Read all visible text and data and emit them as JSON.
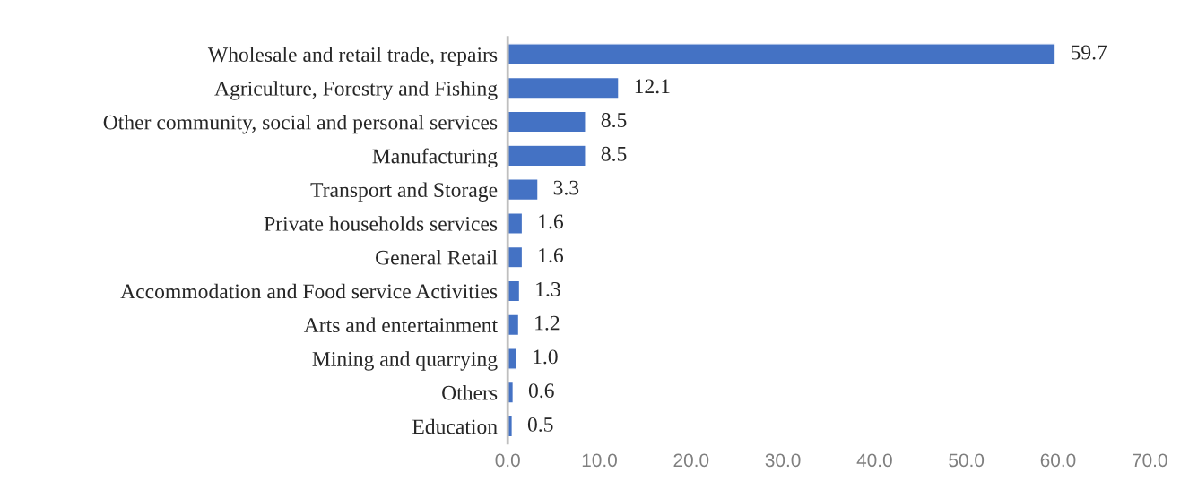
{
  "chart_data": {
    "type": "bar",
    "orientation": "horizontal",
    "categories": [
      "Wholesale and retail trade, repairs",
      "Agriculture, Forestry and Fishing",
      "Other community, social and personal services",
      "Manufacturing",
      "Transport and Storage",
      "Private households services",
      "General Retail",
      "Accommodation and Food service Activities",
      "Arts and entertainment",
      "Mining and quarrying",
      "Others",
      "Education"
    ],
    "values": [
      59.7,
      12.1,
      8.5,
      8.5,
      3.3,
      1.6,
      1.6,
      1.3,
      1.2,
      1.0,
      0.6,
      0.5
    ],
    "color": "#4472c4",
    "xlim": [
      0,
      70
    ],
    "xticks": [
      {
        "value": 0,
        "label": "0.0"
      },
      {
        "value": 10,
        "label": "10.0"
      },
      {
        "value": 20,
        "label": "20.0"
      },
      {
        "value": 30,
        "label": "30.0"
      },
      {
        "value": 40,
        "label": "40.0"
      },
      {
        "value": 50,
        "label": "50.0"
      },
      {
        "value": 60,
        "label": "60.0"
      },
      {
        "value": 70,
        "label": "70.0"
      }
    ],
    "value_labels": [
      "59.7",
      "12.1",
      "8.5",
      "8.5",
      "3.3",
      "1.6",
      "1.6",
      "1.3",
      "1.2",
      "1.0",
      "0.6",
      "0.5"
    ],
    "grid": false,
    "legend": false
  }
}
